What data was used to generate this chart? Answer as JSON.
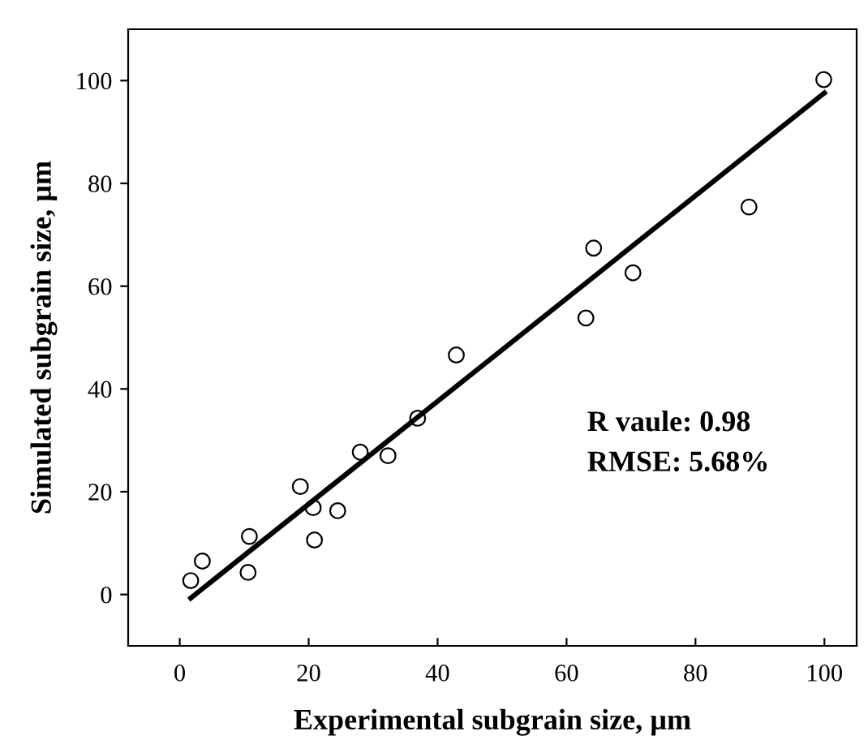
{
  "chart_data": {
    "type": "scatter",
    "xlabel": "Experimental subgrain size, µm",
    "ylabel": "Simulated subgrain size, µm",
    "xlim": [
      -8,
      105
    ],
    "ylim": [
      -10,
      110
    ],
    "xticks": [
      0,
      20,
      40,
      60,
      80,
      100
    ],
    "yticks": [
      0,
      20,
      40,
      60,
      80,
      100
    ],
    "grid": false,
    "annotations": [
      "R vaule: 0.98",
      "RMSE: 5.68%"
    ],
    "series": [
      {
        "marker": "circle",
        "color": "#000000",
        "x": [
          1.7,
          3.5,
          10.6,
          10.8,
          18.7,
          20.7,
          20.9,
          24.5,
          28.0,
          32.3,
          36.9,
          42.9,
          63.0,
          64.2,
          70.3,
          88.3,
          99.9
        ],
        "values": [
          2.7,
          6.5,
          4.3,
          11.3,
          21.0,
          16.9,
          10.6,
          16.3,
          27.7,
          27.0,
          34.3,
          46.6,
          53.8,
          67.4,
          62.6,
          75.4,
          100.2
        ]
      },
      {
        "type": "line",
        "marker": "none",
        "color": "#000000",
        "x": [
          1.7,
          100
        ],
        "values": [
          -0.7,
          97.6
        ]
      }
    ]
  }
}
